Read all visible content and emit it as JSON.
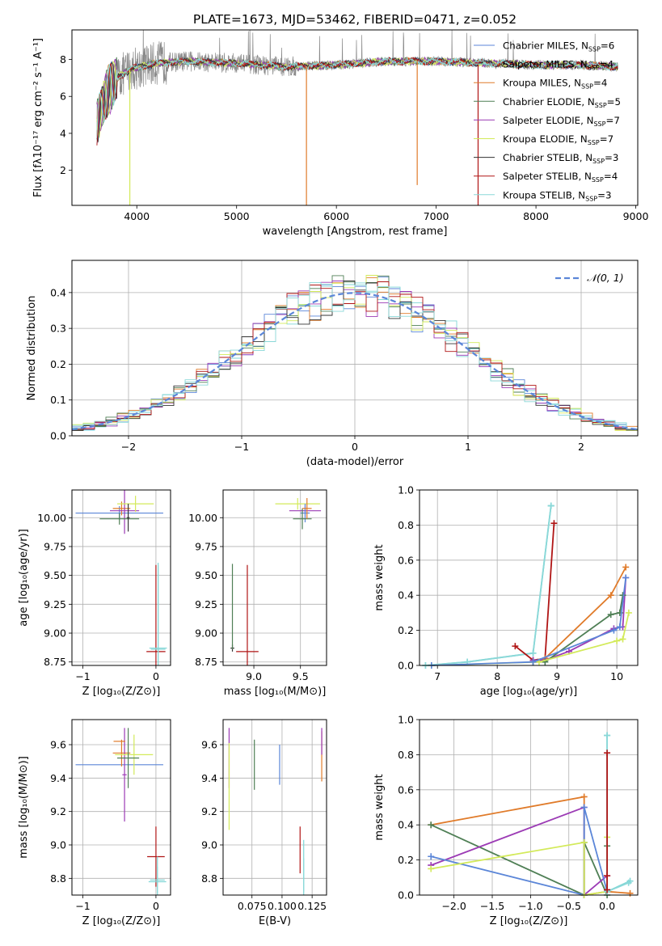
{
  "figure": {
    "title": "PLATE=1673, MJD=53462, FIBERID=0471, z=0.052"
  },
  "colors": {
    "Chabrier MILES": "#5b86d8",
    "Salpeter MILES": "#7fd6d6",
    "Kroupa MILES": "#e07b2a",
    "Chabrier ELODIE": "#4f7f55",
    "Salpeter ELODIE": "#9c3bb5",
    "Kroupa ELODIE": "#d3ea5a",
    "Chabrier STELIB": "#333333",
    "Salpeter STELIB": "#b01515",
    "Kroupa STELIB": "#8ad8d8"
  },
  "chart_data": [
    {
      "id": "spectrum",
      "type": "line",
      "xlabel": "wavelength [Angstrom, rest frame]",
      "ylabel": "Flux [fλ10⁻¹⁷ erg cm⁻² s⁻¹ A⁻¹]",
      "xlim": [
        3350,
        9020
      ],
      "ylim": [
        0.1,
        9.6
      ],
      "xticks": [
        "4000",
        "5000",
        "6000",
        "7000",
        "8000",
        "9000"
      ],
      "yticks": [
        "2",
        "4",
        "6",
        "8"
      ],
      "legend": "upper right",
      "grid": false,
      "legend_entries": [
        {
          "label": "Chabrier MILES, N",
          "sub": "SSP",
          "suffix": "=6"
        },
        {
          "label": "Salpeter MILES, N",
          "sub": "SSP",
          "suffix": "=4"
        },
        {
          "label": "Kroupa MILES, N",
          "sub": "SSP",
          "suffix": "=4"
        },
        {
          "label": "Chabrier ELODIE, N",
          "sub": "SSP",
          "suffix": "=5"
        },
        {
          "label": "Salpeter ELODIE, N",
          "sub": "SSP",
          "suffix": "=7"
        },
        {
          "label": "Kroupa ELODIE, N",
          "sub": "SSP",
          "suffix": "=7"
        },
        {
          "label": "Chabrier STELIB, N",
          "sub": "SSP",
          "suffix": "=3"
        },
        {
          "label": "Salpeter STELIB, N",
          "sub": "SSP",
          "suffix": "=4"
        },
        {
          "label": "Kroupa STELIB, N",
          "sub": "SSP",
          "suffix": "=3"
        }
      ],
      "continuum_knots": [
        [
          3600,
          4.6
        ],
        [
          3700,
          6.2
        ],
        [
          3800,
          7.0
        ],
        [
          3950,
          7.5
        ],
        [
          4200,
          7.8
        ],
        [
          4500,
          7.9
        ],
        [
          5000,
          7.8
        ],
        [
          5500,
          7.6
        ],
        [
          6000,
          7.7
        ],
        [
          6500,
          7.9
        ],
        [
          7000,
          7.9
        ],
        [
          7500,
          7.8
        ],
        [
          8000,
          7.7
        ],
        [
          8500,
          7.7
        ],
        [
          8820,
          7.6
        ]
      ],
      "data_range": [
        3600,
        8820
      ]
    },
    {
      "id": "residuals",
      "type": "bar",
      "xlabel": "(data-model)/error",
      "ylabel": "Normed distribution",
      "xlim": [
        -2.5,
        2.5
      ],
      "ylim": [
        0,
        0.49
      ],
      "xticks": [
        "−2",
        "−1",
        "0",
        "1",
        "2"
      ],
      "xtick_values": [
        -2,
        -1,
        0,
        1,
        2
      ],
      "yticks": [
        "0.0",
        "0.1",
        "0.2",
        "0.3",
        "0.4"
      ],
      "grid": true,
      "legend_label": "(0, 1)",
      "legend_symbol": "𝒩",
      "bin_width": 0.1,
      "bin_start": -2.5
    },
    {
      "id": "age-vs-Z",
      "type": "scatter",
      "xlabel": "Z [log₁₀(Z/Z⊙)]",
      "ylabel": "age  [log₁₀(age/yr)]",
      "xlim": [
        -1.15,
        0.2
      ],
      "ylim": [
        8.72,
        10.24
      ],
      "xticks": [
        "−1",
        "0"
      ],
      "xtick_values": [
        -1,
        0
      ],
      "yticks": [
        "8.75",
        "9.00",
        "9.25",
        "9.50",
        "9.75",
        "10.00"
      ],
      "ytick_values": [
        8.75,
        9.0,
        9.25,
        9.5,
        9.75,
        10.0
      ],
      "grid": true,
      "errorbars": [
        {
          "series": "Chabrier MILES",
          "x": -0.5,
          "xerr": 0.6,
          "y": 10.04,
          "yerr": 0.06
        },
        {
          "series": "Kroupa MILES",
          "x": -0.47,
          "xerr": 0.12,
          "y": 10.08,
          "yerr": 0.06
        },
        {
          "series": "Salpeter ELODIE",
          "x": -0.43,
          "xerr": 0.2,
          "y": 10.06,
          "yerr": 0.2
        },
        {
          "series": "Kroupa ELODIE",
          "x": -0.28,
          "xerr": 0.25,
          "y": 10.12,
          "yerr": 0.07
        },
        {
          "series": "Chabrier ELODIE",
          "x": -0.5,
          "xerr": 0.27,
          "y": 9.99,
          "yerr": 0.05
        },
        {
          "series": "Chabrier STELIB",
          "x": -0.38,
          "xerr": 0.02,
          "y": 10.0,
          "yerr": 0.12
        },
        {
          "series": "Salpeter STELIB",
          "x": 0.0,
          "xerr": 0.13,
          "y": 8.84,
          "yerr": 0.75
        },
        {
          "series": "Salpeter MILES",
          "x": 0.03,
          "xerr": 0.12,
          "y": 8.87,
          "yerr": 0.74
        },
        {
          "series": "Kroupa STELIB",
          "x": 0.03,
          "xerr": 0.1,
          "y": 8.86,
          "yerr": 0.73
        }
      ]
    },
    {
      "id": "age-vs-mass",
      "type": "scatter",
      "xlabel": "mass [log₁₀(M/M⊙)]",
      "ylabel": "",
      "xlim": [
        8.67,
        9.78
      ],
      "ylim": [
        8.72,
        10.24
      ],
      "xticks": [
        "9.0",
        "9.5"
      ],
      "xtick_values": [
        9.0,
        9.5
      ],
      "yticks": [
        "8.75",
        "9.00",
        "9.25",
        "9.50",
        "9.75",
        "10.00"
      ],
      "ytick_values": [
        8.75,
        9.0,
        9.25,
        9.5,
        9.75,
        10.0
      ],
      "grid": true,
      "errorbars": [
        {
          "series": "Kroupa ELODIE",
          "x": 9.47,
          "xerr": 0.24,
          "y": 10.12,
          "yerr": 0.05
        },
        {
          "series": "Salpeter ELODIE",
          "x": 9.55,
          "xerr": 0.17,
          "y": 10.06,
          "yerr": 0.05
        },
        {
          "series": "Chabrier MILES",
          "x": 9.55,
          "xerr": 0.05,
          "y": 10.04,
          "yerr": 0.08
        },
        {
          "series": "Chabrier ELODIE",
          "x": 9.52,
          "xerr": 0.1,
          "y": 9.99,
          "yerr": 0.09
        },
        {
          "series": "Kroupa MILES",
          "x": 9.57,
          "xerr": 0.05,
          "y": 10.08,
          "yerr": 0.09
        },
        {
          "series": "Chabrier STELIB",
          "x": 8.77,
          "xerr": 0.02,
          "y": 8.87,
          "yerr": 0.03
        },
        {
          "series": "Chabrier ELODIE",
          "x": 8.77,
          "xerr": 0.0,
          "y": 9.23,
          "yerr": 0.37
        },
        {
          "series": "Salpeter STELIB",
          "x": 8.93,
          "xerr": 0.12,
          "y": 8.84,
          "yerr": 0.75
        }
      ]
    },
    {
      "id": "weight-vs-age",
      "type": "line",
      "xlabel": "age  [log₁₀(age/yr)]",
      "ylabel": "mass weight",
      "xlim": [
        6.7,
        10.35
      ],
      "ylim": [
        0,
        1.0
      ],
      "xticks": [
        "7",
        "8",
        "9",
        "10"
      ],
      "xtick_values": [
        7,
        8,
        9,
        10
      ],
      "yticks": [
        "0.0",
        "0.2",
        "0.4",
        "0.6",
        "0.8",
        "1.0"
      ],
      "ytick_values": [
        0,
        0.2,
        0.4,
        0.6,
        0.8,
        1.0
      ],
      "grid": true,
      "series": [
        {
          "name": "Salpeter MILES",
          "x": [
            6.8,
            7.5,
            8.6,
            8.9,
            8.9
          ],
          "y": [
            0.0,
            0.02,
            0.07,
            0.91,
            0.91
          ]
        },
        {
          "name": "Kroupa STELIB",
          "x": [
            6.8,
            7.5,
            8.6,
            8.9
          ],
          "y": [
            0.0,
            0.02,
            0.07,
            0.91
          ]
        },
        {
          "name": "Salpeter STELIB",
          "x": [
            8.3,
            8.6,
            8.8,
            8.95
          ],
          "y": [
            0.11,
            0.03,
            0.04,
            0.81
          ]
        },
        {
          "name": "Kroupa MILES",
          "x": [
            8.6,
            8.8,
            9.9,
            10.15
          ],
          "y": [
            0.02,
            0.04,
            0.4,
            0.56
          ]
        },
        {
          "name": "Salpeter ELODIE",
          "x": [
            8.6,
            8.8,
            9.2,
            9.95,
            10.1,
            10.15
          ],
          "y": [
            0.03,
            0.03,
            0.08,
            0.21,
            0.22,
            0.5
          ]
        },
        {
          "name": "Chabrier ELODIE",
          "x": [
            8.6,
            8.8,
            9.9,
            10.05,
            10.1
          ],
          "y": [
            0.02,
            0.02,
            0.29,
            0.3,
            0.4
          ]
        },
        {
          "name": "Kroupa ELODIE",
          "x": [
            6.9,
            8.7,
            10.0,
            10.1,
            10.2
          ],
          "y": [
            0.0,
            0.02,
            0.14,
            0.15,
            0.3
          ]
        },
        {
          "name": "Chabrier MILES",
          "x": [
            6.9,
            8.6,
            9.95,
            10.05,
            10.15
          ],
          "y": [
            0.0,
            0.02,
            0.2,
            0.22,
            0.5
          ]
        }
      ]
    },
    {
      "id": "mass-vs-Z",
      "type": "scatter",
      "xlabel": "Z [log₁₀(Z/Z⊙)]",
      "ylabel": "mass [log₁₀(M/M⊙)]",
      "xlim": [
        -1.15,
        0.2
      ],
      "ylim": [
        8.7,
        9.75
      ],
      "xticks": [
        "−1",
        "0"
      ],
      "xtick_values": [
        -1,
        0
      ],
      "yticks": [
        "8.8",
        "9.0",
        "9.2",
        "9.4",
        "9.6"
      ],
      "ytick_values": [
        8.8,
        9.0,
        9.2,
        9.4,
        9.6
      ],
      "grid": true,
      "errorbars": [
        {
          "series": "Chabrier MILES",
          "x": -0.5,
          "xerr": 0.6,
          "y": 9.48,
          "yerr": 0.0
        },
        {
          "series": "Kroupa MILES",
          "x": -0.47,
          "xerr": 0.12,
          "y": 9.55,
          "yerr": 0.08
        },
        {
          "series": "Salpeter ELODIE",
          "x": -0.43,
          "xerr": 0.03,
          "y": 9.42,
          "yerr": 0.28
        },
        {
          "series": "Kroupa ELODIE",
          "x": -0.3,
          "xerr": 0.26,
          "y": 9.54,
          "yerr": 0.12
        },
        {
          "series": "Chabrier ELODIE",
          "x": -0.38,
          "xerr": 0.15,
          "y": 9.52,
          "yerr": 0.18
        },
        {
          "series": "Salpeter STELIB",
          "x": 0.0,
          "xerr": 0.12,
          "y": 8.93,
          "yerr": 0.18
        },
        {
          "series": "Salpeter MILES",
          "x": 0.02,
          "xerr": 0.12,
          "y": 8.78,
          "yerr": 0.15
        },
        {
          "series": "Kroupa STELIB",
          "x": 0.02,
          "xerr": 0.1,
          "y": 8.79,
          "yerr": 0.08
        },
        {
          "series": "Kroupa MILES",
          "x": -0.5,
          "xerr": 0.08,
          "y": 9.62,
          "yerr": 0.0
        }
      ]
    },
    {
      "id": "mass-vs-EBV",
      "type": "scatter",
      "xlabel": "E(B-V)",
      "ylabel": "",
      "xlim": [
        0.051,
        0.137
      ],
      "ylim": [
        8.7,
        9.75
      ],
      "xticks": [
        "0.075",
        "0.100",
        "0.125"
      ],
      "xtick_values": [
        0.075,
        0.1,
        0.125
      ],
      "yticks": [
        "8.8",
        "9.0",
        "9.2",
        "9.4",
        "9.6"
      ],
      "ytick_values": [
        8.8,
        9.0,
        9.2,
        9.4,
        9.6
      ],
      "grid": true,
      "errorbars": [
        {
          "series": "Salpeter ELODIE",
          "x": 0.056,
          "xerr": 0.0,
          "y": 9.52,
          "yerr": 0.18
        },
        {
          "series": "Kroupa ELODIE",
          "x": 0.056,
          "xerr": 0.0,
          "y": 9.35,
          "yerr": 0.26
        },
        {
          "series": "Chabrier ELODIE",
          "x": 0.077,
          "xerr": 0.0,
          "y": 9.48,
          "yerr": 0.15
        },
        {
          "series": "Chabrier MILES",
          "x": 0.098,
          "xerr": 0.0,
          "y": 9.48,
          "yerr": 0.12
        },
        {
          "series": "Salpeter STELIB",
          "x": 0.115,
          "xerr": 0.0,
          "y": 8.97,
          "yerr": 0.14
        },
        {
          "series": "Salpeter MILES",
          "x": 0.118,
          "xerr": 0.0,
          "y": 8.85,
          "yerr": 0.18
        },
        {
          "series": "Kroupa STELIB",
          "x": 0.118,
          "xerr": 0.0,
          "y": 8.82,
          "yerr": 0.1
        },
        {
          "series": "Kroupa MILES",
          "x": 0.133,
          "xerr": 0.0,
          "y": 9.53,
          "yerr": 0.15
        },
        {
          "series": "Salpeter ELODIE",
          "x": 0.133,
          "xerr": 0.0,
          "y": 9.62,
          "yerr": 0.08
        }
      ]
    },
    {
      "id": "weight-vs-Z",
      "type": "line",
      "xlabel": "Z [log₁₀(Z/Z⊙)]",
      "ylabel": "mass weight",
      "xlim": [
        -2.45,
        0.4
      ],
      "ylim": [
        0,
        1.0
      ],
      "xticks": [
        "−2.0",
        "−1.5",
        "−1.0",
        "−0.5",
        "0.0"
      ],
      "xtick_values": [
        -2.0,
        -1.5,
        -1.0,
        -0.5,
        0.0
      ],
      "yticks": [
        "0.0",
        "0.2",
        "0.4",
        "0.6",
        "0.8",
        "1.0"
      ],
      "ytick_values": [
        0,
        0.2,
        0.4,
        0.6,
        0.8,
        1.0
      ],
      "grid": true,
      "series": [
        {
          "name": "Kroupa MILES",
          "x": [
            -2.3,
            -0.3,
            -0.3,
            0.0,
            0.3
          ],
          "y": [
            0.4,
            0.56,
            0.0,
            0.02,
            0.01
          ]
        },
        {
          "name": "Chabrier ELODIE",
          "x": [
            -2.3,
            -0.3,
            -0.3,
            0.0,
            0.0
          ],
          "y": [
            0.4,
            0.0,
            0.3,
            0.0,
            0.28
          ]
        },
        {
          "name": "Salpeter ELODIE",
          "x": [
            -2.3,
            -0.3,
            -0.3,
            0.0,
            0.0
          ],
          "y": [
            0.17,
            0.5,
            0.0,
            0.11,
            0.03
          ]
        },
        {
          "name": "Chabrier MILES",
          "x": [
            -2.3,
            -0.3,
            -0.3,
            0.0
          ],
          "y": [
            0.22,
            0.0,
            0.5,
            0.02
          ]
        },
        {
          "name": "Kroupa ELODIE",
          "x": [
            -2.3,
            -0.3,
            -0.3,
            0.0,
            0.0
          ],
          "y": [
            0.15,
            0.3,
            0.0,
            0.02,
            0.33
          ]
        },
        {
          "name": "Salpeter MILES",
          "x": [
            0.0,
            0.0,
            0.3
          ],
          "y": [
            0.91,
            0.02,
            0.08
          ]
        },
        {
          "name": "Kroupa STELIB",
          "x": [
            0.0,
            0.0,
            0.28
          ],
          "y": [
            0.91,
            0.02,
            0.07
          ]
        },
        {
          "name": "Salpeter STELIB",
          "x": [
            0.0,
            0.0,
            0.0
          ],
          "y": [
            0.81,
            0.03,
            0.11
          ]
        }
      ]
    }
  ]
}
